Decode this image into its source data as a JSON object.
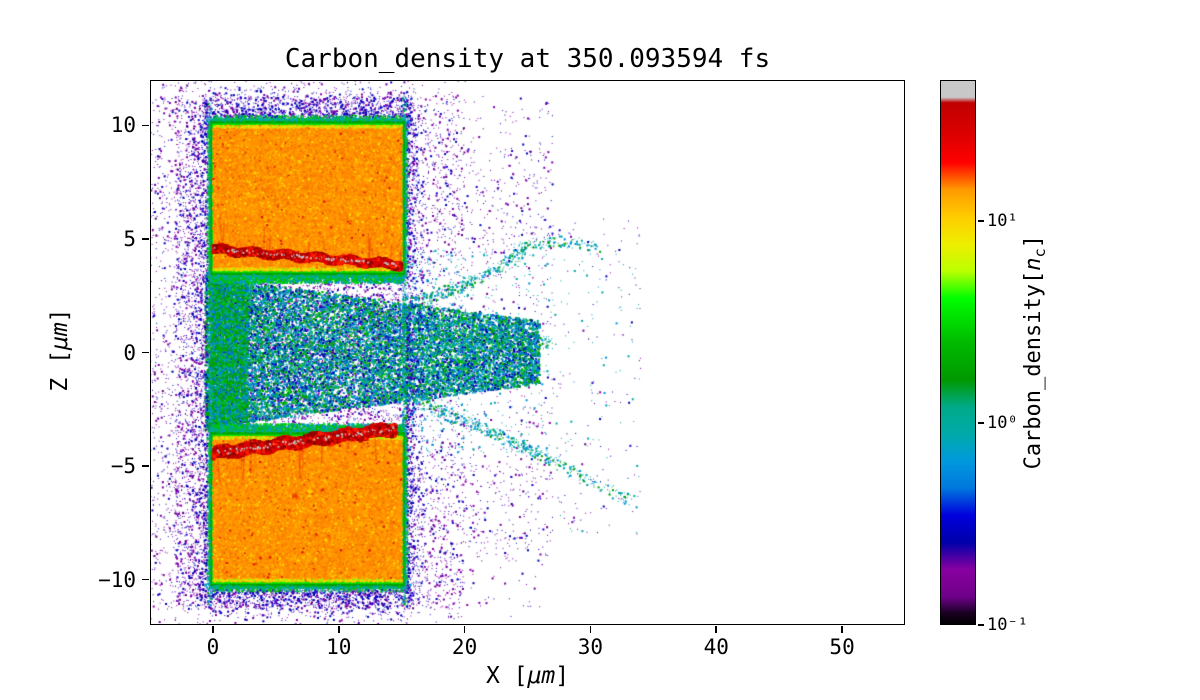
{
  "chart_data": {
    "type": "heatmap",
    "title": "Carbon_density at 350.093594 fs",
    "xlabel": {
      "prefix": "X [",
      "unit": "μm",
      "suffix": "]"
    },
    "ylabel": {
      "prefix": "Z [",
      "unit": "μm",
      "suffix": "]"
    },
    "xlim": [
      -5,
      55
    ],
    "ylim": [
      -12,
      12
    ],
    "x_ticks": [
      {
        "v": 0,
        "label": "0"
      },
      {
        "v": 10,
        "label": "10"
      },
      {
        "v": 20,
        "label": "20"
      },
      {
        "v": 30,
        "label": "30"
      },
      {
        "v": 40,
        "label": "40"
      },
      {
        "v": 50,
        "label": "50"
      }
    ],
    "y_ticks": [
      {
        "v": -10,
        "label": "−10"
      },
      {
        "v": -5,
        "label": "−5"
      },
      {
        "v": 0,
        "label": "0"
      },
      {
        "v": 5,
        "label": "5"
      },
      {
        "v": 10,
        "label": "10"
      }
    ],
    "grid": false,
    "colorbar": {
      "label": {
        "prefix": "Carbon_density[",
        "var": "n",
        "sub": "c",
        "suffix": "]"
      },
      "scale": "log",
      "vmin": 0.1,
      "vmax": 50,
      "ticks": [
        {
          "value": 10,
          "label": "10¹"
        },
        {
          "value": 1,
          "label": "10⁰"
        },
        {
          "value": 0.1,
          "label": "10⁻¹"
        }
      ],
      "colormap": "nipy_spectral",
      "stops": [
        [
          0,
          "#000000"
        ],
        [
          0.02,
          "#1a0022"
        ],
        [
          0.05,
          "#6e0089"
        ],
        [
          0.1,
          "#8800a0"
        ],
        [
          0.15,
          "#0000aa"
        ],
        [
          0.2,
          "#0000dd"
        ],
        [
          0.25,
          "#0077dd"
        ],
        [
          0.3,
          "#0099dd"
        ],
        [
          0.35,
          "#00aaaa"
        ],
        [
          0.4,
          "#00aa88"
        ],
        [
          0.45,
          "#009900"
        ],
        [
          0.52,
          "#00bb00"
        ],
        [
          0.6,
          "#00ff00"
        ],
        [
          0.65,
          "#bbff00"
        ],
        [
          0.7,
          "#eeee00"
        ],
        [
          0.75,
          "#ffcc00"
        ],
        [
          0.8,
          "#ff9900"
        ],
        [
          0.85,
          "#ff0000"
        ],
        [
          0.9,
          "#dd0000"
        ],
        [
          0.96,
          "#c00000"
        ],
        [
          0.97,
          "#c8c8c8"
        ],
        [
          1,
          "#c8c8c8"
        ]
      ]
    },
    "palette": {
      "purple1": "#7a00a6",
      "purple2": "#9000ae",
      "violet": "#56007e",
      "blue1": "#0000b4",
      "blue2": "#1e00d2",
      "lblue": "#0073d8",
      "sky": "#0095d8",
      "teal": "#00a8a8",
      "tealg": "#00a884",
      "green": "#00a000",
      "green2": "#00c000",
      "bgreen": "#00e000",
      "lime": "#9cf000",
      "yellow": "#ffd800",
      "orange": "#ff9100",
      "orange_shades": [
        "#ff9d00",
        "#ff8400",
        "#ffae00",
        "#f77a00"
      ],
      "red_shades": [
        "#e00000",
        "#b40000",
        "#ff1e00",
        "#8c0000"
      ],
      "red": "#e00000",
      "gray": "#c8c8c8"
    },
    "features": {
      "upper_block": {
        "x0": 0,
        "x1": 15.05,
        "z0": 3.6,
        "z1": 10.0
      },
      "lower_block": {
        "x0": 0,
        "x1": 15.05,
        "z0": -10.1,
        "z1": -3.7
      },
      "upper_streak": {
        "x0": 0,
        "z0": 4.55,
        "x1": 15.0,
        "z1": 3.85,
        "thickness": 0.32,
        "wisp_dir": 1
      },
      "lower_streak": {
        "x0": 0,
        "z0": -4.45,
        "x1": 14.6,
        "z1": -3.35,
        "thickness": 0.5,
        "wisp_dir": -1
      },
      "plume": {
        "x_max": 26,
        "z_half": 3.3
      },
      "noise": {
        "x_min": -5,
        "x_max": 34
      },
      "tendrils": [
        {
          "p": [
            15.5,
            2.2,
            20,
            2.6,
            25,
            4.6
          ],
          "n": 350
        },
        {
          "p": [
            15.5,
            -2.0,
            21,
            -3.2,
            26.5,
            -4.6
          ],
          "n": 380
        },
        {
          "p": [
            16,
            0.3,
            21,
            0.8,
            27,
            0.4
          ],
          "n": 260
        },
        {
          "p": [
            24,
            4.5,
            27,
            5.2,
            30.5,
            4.6
          ],
          "n": 120
        },
        {
          "p": [
            26,
            -4.5,
            29,
            -5.4,
            33.5,
            -6.6
          ],
          "n": 140
        }
      ],
      "hotspots": [
        {
          "x": 6.5,
          "z": -6.3
        }
      ]
    }
  }
}
